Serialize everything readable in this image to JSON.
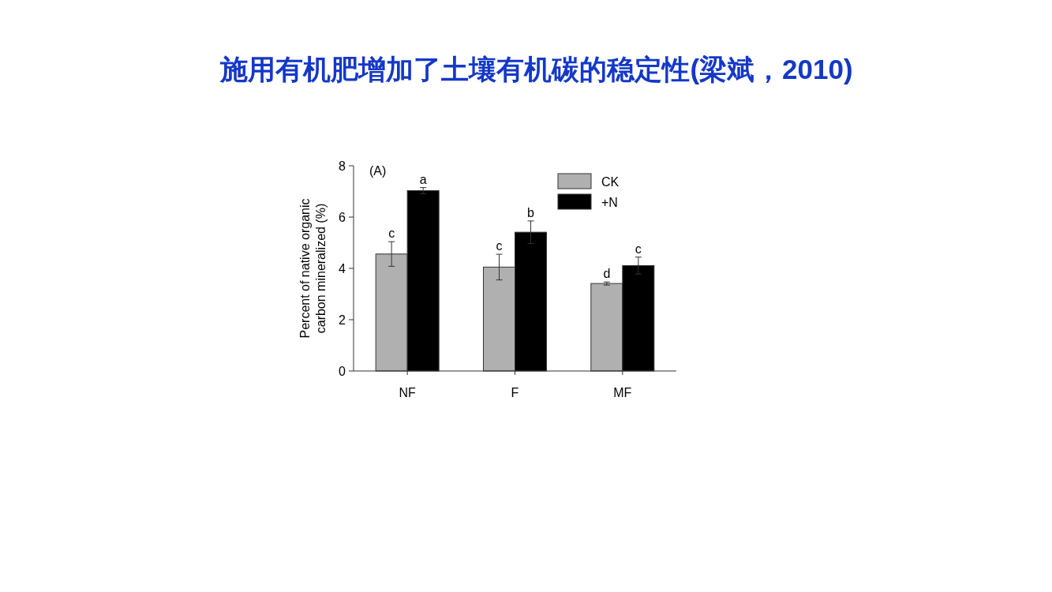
{
  "chart_data": {
    "type": "bar",
    "title": "施用有机肥增加了土壤有机碳的稳定性(梁斌，2010)",
    "ylabel": "Percent of native organic\ncarbon mineralized (%)",
    "categories": [
      "NF",
      "F",
      "MF"
    ],
    "series": [
      {
        "name": "CK",
        "color": "#b0b0b0",
        "values": [
          4.56,
          4.05,
          3.41
        ],
        "errors": [
          0.48,
          0.5,
          0.06
        ]
      },
      {
        "name": "+N",
        "color": "#000000",
        "values": [
          7.03,
          5.41,
          4.11
        ],
        "errors": [
          0.12,
          0.44,
          0.33
        ]
      }
    ],
    "ylim": [
      0,
      8
    ],
    "yticks": [
      0,
      2,
      4,
      6,
      8
    ],
    "legend": "top right",
    "annotations": [
      "(A)",
      {
        "text": "c",
        "x": "NF",
        "y": 4.56
      },
      {
        "text": "a",
        "x": "NF",
        "y": 7.03
      },
      {
        "text": "c",
        "x": "F",
        "y": 4.05
      },
      {
        "text": "b",
        "x": "F",
        "y": 5.41
      },
      {
        "text": "d",
        "x": "MF",
        "y": 3.41
      },
      {
        "text": "c",
        "x": "MF",
        "y": 4.11
      }
    ]
  }
}
